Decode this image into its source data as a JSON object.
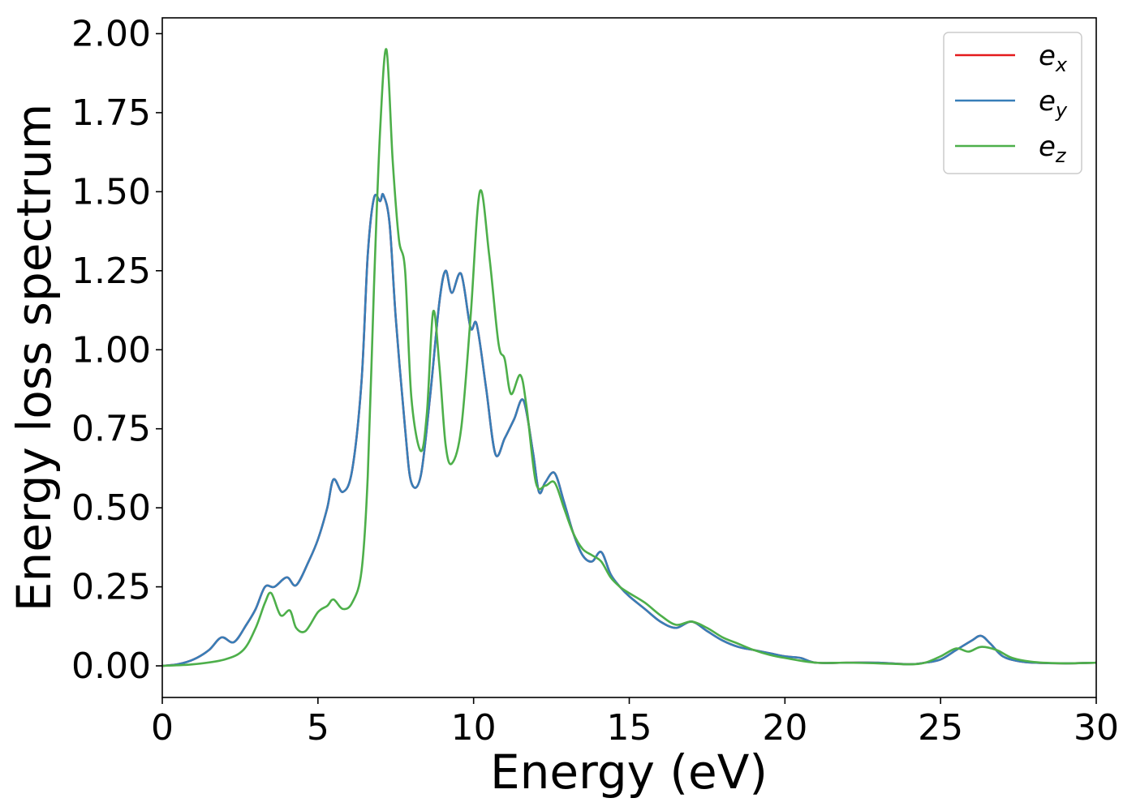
{
  "chart_data": {
    "type": "line",
    "title": "",
    "xlabel": "Energy (eV)",
    "ylabel": "Energy loss spectrum",
    "xlim": [
      0,
      30
    ],
    "ylim": [
      -0.1,
      2.05
    ],
    "xticks": [
      0,
      5,
      10,
      15,
      20,
      25,
      30
    ],
    "xtick_labels": [
      "0",
      "5",
      "10",
      "15",
      "20",
      "25",
      "30"
    ],
    "yticks": [
      0,
      0.25,
      0.5,
      0.75,
      1.0,
      1.25,
      1.5,
      1.75,
      2.0
    ],
    "ytick_labels": [
      "0.00",
      "0.25",
      "0.50",
      "0.75",
      "1.00",
      "1.25",
      "1.50",
      "1.75",
      "2.00"
    ],
    "grid": false,
    "legend_position": "top-right",
    "series": [
      {
        "name": "e",
        "subscript": "x",
        "color": "#e41a1c",
        "x": [
          0,
          0.5,
          1.0,
          1.5,
          1.9,
          2.3,
          2.7,
          3.0,
          3.3,
          3.6,
          4.0,
          4.3,
          4.7,
          5.0,
          5.3,
          5.5,
          5.8,
          6.1,
          6.4,
          6.6,
          6.8,
          7.0,
          7.1,
          7.3,
          7.5,
          7.8,
          8.0,
          8.3,
          8.6,
          8.9,
          9.1,
          9.3,
          9.6,
          9.9,
          10.1,
          10.4,
          10.7,
          11.0,
          11.3,
          11.6,
          11.9,
          12.1,
          12.3,
          12.6,
          12.9,
          13.2,
          13.5,
          13.8,
          14.1,
          14.4,
          14.7,
          15.0,
          15.5,
          16.0,
          16.5,
          17.0,
          17.5,
          18.0,
          18.5,
          19.0,
          19.5,
          20.0,
          20.5,
          21.0,
          22.0,
          23.0,
          24.0,
          24.5,
          25.0,
          25.5,
          26.0,
          26.3,
          26.6,
          27.0,
          27.5,
          28.0,
          29.0,
          30.0
        ],
        "y": [
          0.0,
          0.005,
          0.02,
          0.05,
          0.09,
          0.075,
          0.13,
          0.18,
          0.25,
          0.25,
          0.28,
          0.255,
          0.33,
          0.4,
          0.5,
          0.59,
          0.55,
          0.62,
          0.9,
          1.3,
          1.48,
          1.47,
          1.49,
          1.4,
          1.1,
          0.75,
          0.58,
          0.6,
          0.85,
          1.15,
          1.25,
          1.18,
          1.24,
          1.07,
          1.08,
          0.88,
          0.67,
          0.72,
          0.78,
          0.84,
          0.68,
          0.55,
          0.58,
          0.61,
          0.52,
          0.42,
          0.35,
          0.33,
          0.36,
          0.29,
          0.25,
          0.22,
          0.18,
          0.14,
          0.12,
          0.14,
          0.11,
          0.08,
          0.06,
          0.05,
          0.04,
          0.03,
          0.025,
          0.01,
          0.01,
          0.01,
          0.005,
          0.01,
          0.02,
          0.05,
          0.08,
          0.095,
          0.07,
          0.03,
          0.015,
          0.01,
          0.008,
          0.01
        ]
      },
      {
        "name": "e",
        "subscript": "y",
        "color": "#377eb8",
        "x": [
          0,
          0.5,
          1.0,
          1.5,
          1.9,
          2.3,
          2.7,
          3.0,
          3.3,
          3.6,
          4.0,
          4.3,
          4.7,
          5.0,
          5.3,
          5.5,
          5.8,
          6.1,
          6.4,
          6.6,
          6.8,
          7.0,
          7.1,
          7.3,
          7.5,
          7.8,
          8.0,
          8.3,
          8.6,
          8.9,
          9.1,
          9.3,
          9.6,
          9.9,
          10.1,
          10.4,
          10.7,
          11.0,
          11.3,
          11.6,
          11.9,
          12.1,
          12.3,
          12.6,
          12.9,
          13.2,
          13.5,
          13.8,
          14.1,
          14.4,
          14.7,
          15.0,
          15.5,
          16.0,
          16.5,
          17.0,
          17.5,
          18.0,
          18.5,
          19.0,
          19.5,
          20.0,
          20.5,
          21.0,
          22.0,
          23.0,
          24.0,
          24.5,
          25.0,
          25.5,
          26.0,
          26.3,
          26.6,
          27.0,
          27.5,
          28.0,
          29.0,
          30.0
        ],
        "y": [
          0.0,
          0.005,
          0.02,
          0.05,
          0.09,
          0.075,
          0.13,
          0.18,
          0.25,
          0.25,
          0.28,
          0.255,
          0.33,
          0.4,
          0.5,
          0.59,
          0.55,
          0.62,
          0.9,
          1.3,
          1.48,
          1.47,
          1.49,
          1.4,
          1.1,
          0.75,
          0.58,
          0.6,
          0.85,
          1.15,
          1.25,
          1.18,
          1.24,
          1.07,
          1.08,
          0.88,
          0.67,
          0.72,
          0.78,
          0.84,
          0.68,
          0.55,
          0.58,
          0.61,
          0.52,
          0.42,
          0.35,
          0.33,
          0.36,
          0.29,
          0.25,
          0.22,
          0.18,
          0.14,
          0.12,
          0.14,
          0.11,
          0.08,
          0.06,
          0.05,
          0.04,
          0.03,
          0.025,
          0.01,
          0.01,
          0.01,
          0.005,
          0.01,
          0.02,
          0.05,
          0.08,
          0.095,
          0.07,
          0.03,
          0.015,
          0.01,
          0.008,
          0.01
        ]
      },
      {
        "name": "e",
        "subscript": "z",
        "color": "#4daf4a",
        "x": [
          0,
          1.0,
          2.0,
          2.6,
          3.0,
          3.3,
          3.5,
          3.8,
          4.1,
          4.3,
          4.6,
          5.0,
          5.3,
          5.5,
          5.8,
          6.1,
          6.4,
          6.6,
          6.8,
          7.0,
          7.2,
          7.4,
          7.6,
          7.8,
          8.0,
          8.3,
          8.5,
          8.7,
          8.9,
          9.1,
          9.3,
          9.6,
          9.9,
          10.2,
          10.5,
          10.8,
          11.0,
          11.2,
          11.5,
          11.7,
          12.0,
          12.3,
          12.6,
          12.9,
          13.2,
          13.5,
          13.8,
          14.1,
          14.4,
          14.7,
          15.0,
          15.5,
          16.0,
          16.5,
          17.0,
          17.5,
          18.0,
          18.5,
          19.0,
          19.5,
          20.0,
          21.0,
          22.0,
          23.0,
          24.0,
          24.5,
          25.0,
          25.5,
          25.9,
          26.3,
          26.8,
          27.3,
          28.0,
          29.0,
          30.0
        ],
        "y": [
          0.0,
          0.005,
          0.02,
          0.05,
          0.12,
          0.2,
          0.23,
          0.16,
          0.175,
          0.12,
          0.11,
          0.17,
          0.19,
          0.21,
          0.18,
          0.2,
          0.3,
          0.6,
          1.2,
          1.7,
          1.95,
          1.6,
          1.35,
          1.25,
          0.85,
          0.68,
          0.8,
          1.12,
          0.95,
          0.7,
          0.64,
          0.75,
          1.1,
          1.5,
          1.3,
          1.02,
          0.97,
          0.86,
          0.92,
          0.82,
          0.58,
          0.57,
          0.58,
          0.5,
          0.42,
          0.37,
          0.35,
          0.33,
          0.28,
          0.25,
          0.23,
          0.2,
          0.16,
          0.13,
          0.14,
          0.12,
          0.09,
          0.07,
          0.05,
          0.035,
          0.025,
          0.01,
          0.01,
          0.008,
          0.005,
          0.01,
          0.03,
          0.055,
          0.045,
          0.06,
          0.05,
          0.025,
          0.012,
          0.008,
          0.01
        ]
      }
    ]
  }
}
